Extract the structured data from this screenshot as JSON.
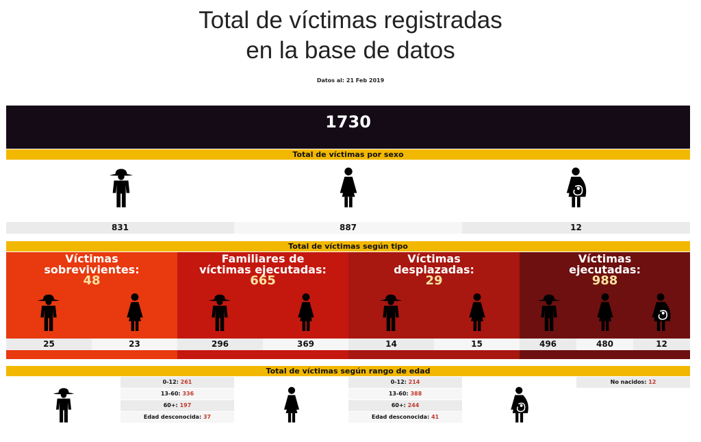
{
  "title_line1": "Total de víctimas registradas",
  "title_line2": "en la base de datos",
  "date_label": "Datos al: 21 Feb 2019",
  "total": "1730",
  "sex_section": {
    "title": "Total de víctimas por sexo",
    "items": [
      {
        "icon": "man-hat-icon",
        "value": "831"
      },
      {
        "icon": "woman-icon",
        "value": "887"
      },
      {
        "icon": "pregnant-woman-icon",
        "value": "12"
      }
    ]
  },
  "type_section": {
    "title": "Total de víctimas según tipo",
    "types": [
      {
        "label_line1": "Víctimas",
        "label_line2": "sobrevivientes:",
        "total": "48",
        "color": "#e8390f",
        "men": "25",
        "women": "23"
      },
      {
        "label_line1": "Familiares de",
        "label_line2": "víctimas ejecutadas:",
        "total": "665",
        "color": "#c4180f",
        "men": "296",
        "women": "369"
      },
      {
        "label_line1": "Víctimas",
        "label_line2": "desplazadas:",
        "total": "29",
        "color": "#a81710",
        "men": "14",
        "women": "15"
      },
      {
        "label_line1": "Víctimas",
        "label_line2": "ejecutadas:",
        "total": "988",
        "color": "#6e1010",
        "men": "496",
        "women": "480",
        "unborn": "12"
      }
    ]
  },
  "age_section": {
    "title": "Total de víctimas según rango de edad",
    "men": [
      {
        "label": "0-12:",
        "value": "261"
      },
      {
        "label": "13-60:",
        "value": "336"
      },
      {
        "label": "60+:",
        "value": "197"
      },
      {
        "label": "Edad desconocida:",
        "value": "37"
      }
    ],
    "women": [
      {
        "label": "0-12:",
        "value": "214"
      },
      {
        "label": "13-60:",
        "value": "388"
      },
      {
        "label": "60+:",
        "value": "244"
      },
      {
        "label": "Edad desconocida:",
        "value": "41"
      }
    ],
    "unborn": {
      "label": "No nacidos:",
      "value": "12"
    }
  },
  "colors": {
    "header_dark": "#150b17",
    "band_yellow": "#f2b800",
    "light_gray": "#ebebeb",
    "value_red": "#c0392b"
  }
}
